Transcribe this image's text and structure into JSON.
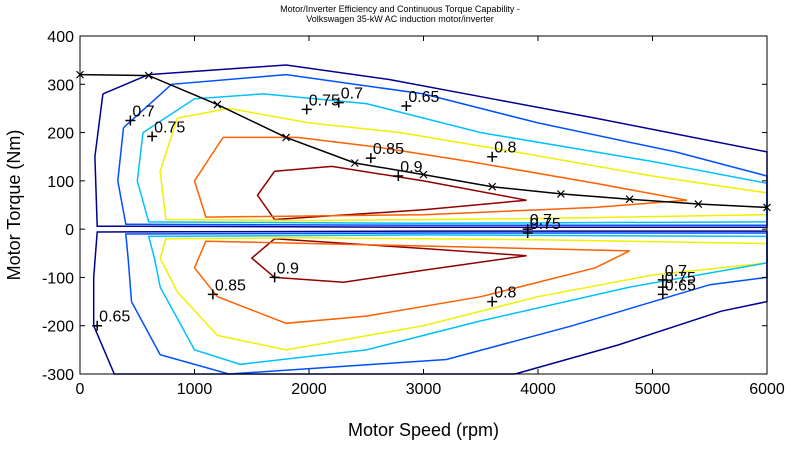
{
  "chart_data": {
    "type": "contour",
    "title": "Motor/Inverter Efficiency and Continuous Torque Capability -",
    "subtitle": "Volkswagen 35-kW  AC induction motor/inverter",
    "xlabel": "Motor Speed (rpm)",
    "ylabel": "Motor Torque (Nm)",
    "xlim": [
      0,
      6000
    ],
    "ylim": [
      -300,
      400
    ],
    "xticks": [
      0,
      1000,
      2000,
      3000,
      4000,
      5000,
      6000
    ],
    "yticks": [
      -300,
      -200,
      -100,
      0,
      100,
      200,
      300,
      400
    ],
    "grid": false,
    "contour_levels": [
      {
        "level": 0.65,
        "color": "#00008f"
      },
      {
        "level": 0.7,
        "color": "#0050ff"
      },
      {
        "level": 0.75,
        "color": "#00c0ff"
      },
      {
        "level": 0.8,
        "color": "#f0f000"
      },
      {
        "level": 0.85,
        "color": "#ff6000"
      },
      {
        "level": 0.9,
        "color": "#8f0000"
      }
    ],
    "contours": [
      {
        "level": 0.9,
        "points": [
          [
            1700,
            120
          ],
          [
            2200,
            130
          ],
          [
            3000,
            100
          ],
          [
            3900,
            60
          ],
          [
            3000,
            40
          ],
          [
            1700,
            20
          ],
          [
            1550,
            70
          ],
          [
            1700,
            120
          ]
        ]
      },
      {
        "level": 0.9,
        "points": [
          [
            1700,
            -100
          ],
          [
            2300,
            -110
          ],
          [
            3000,
            -85
          ],
          [
            3900,
            -55
          ],
          [
            3000,
            -40
          ],
          [
            1700,
            -20
          ],
          [
            1500,
            -60
          ],
          [
            1700,
            -100
          ]
        ]
      },
      {
        "level": 0.85,
        "points": [
          [
            1250,
            190
          ],
          [
            1900,
            190
          ],
          [
            2600,
            170
          ],
          [
            3400,
            140
          ],
          [
            4500,
            95
          ],
          [
            5300,
            60
          ],
          [
            4500,
            45
          ],
          [
            3000,
            30
          ],
          [
            1100,
            25
          ],
          [
            1000,
            100
          ],
          [
            1250,
            190
          ]
        ]
      },
      {
        "level": 0.85,
        "points": [
          [
            1200,
            -140
          ],
          [
            1800,
            -195
          ],
          [
            2500,
            -180
          ],
          [
            3500,
            -140
          ],
          [
            4500,
            -80
          ],
          [
            4800,
            -45
          ],
          [
            3000,
            -35
          ],
          [
            1100,
            -25
          ],
          [
            1000,
            -80
          ],
          [
            1200,
            -140
          ]
        ]
      },
      {
        "level": 0.8,
        "points": [
          [
            850,
            230
          ],
          [
            1300,
            250
          ],
          [
            2000,
            220
          ],
          [
            2800,
            200
          ],
          [
            3800,
            160
          ],
          [
            5000,
            110
          ],
          [
            6000,
            75
          ],
          [
            6000,
            30
          ],
          [
            4000,
            22
          ],
          [
            2000,
            18
          ],
          [
            750,
            20
          ],
          [
            700,
            120
          ],
          [
            850,
            230
          ]
        ]
      },
      {
        "level": 0.8,
        "points": [
          [
            850,
            -130
          ],
          [
            1200,
            -220
          ],
          [
            1800,
            -250
          ],
          [
            3000,
            -200
          ],
          [
            4000,
            -140
          ],
          [
            5000,
            -95
          ],
          [
            6000,
            -70
          ],
          [
            6000,
            -30
          ],
          [
            4000,
            -22
          ],
          [
            2000,
            -18
          ],
          [
            750,
            -20
          ],
          [
            700,
            -60
          ],
          [
            850,
            -130
          ]
        ]
      },
      {
        "level": 0.75,
        "points": [
          [
            550,
            200
          ],
          [
            1000,
            270
          ],
          [
            1600,
            280
          ],
          [
            2500,
            260
          ],
          [
            3500,
            200
          ],
          [
            5000,
            140
          ],
          [
            6000,
            95
          ],
          [
            6000,
            15
          ],
          [
            3000,
            12
          ],
          [
            600,
            15
          ],
          [
            500,
            100
          ],
          [
            550,
            200
          ]
        ]
      },
      {
        "level": 0.75,
        "points": [
          [
            700,
            -120
          ],
          [
            1000,
            -250
          ],
          [
            1400,
            -280
          ],
          [
            2500,
            -250
          ],
          [
            3500,
            -190
          ],
          [
            4800,
            -120
          ],
          [
            6000,
            -70
          ],
          [
            6000,
            -15
          ],
          [
            3000,
            -12
          ],
          [
            600,
            -15
          ],
          [
            650,
            -60
          ],
          [
            700,
            -120
          ]
        ]
      },
      {
        "level": 0.7,
        "points": [
          [
            380,
            210
          ],
          [
            800,
            300
          ],
          [
            1800,
            320
          ],
          [
            3000,
            280
          ],
          [
            4000,
            220
          ],
          [
            5200,
            160
          ],
          [
            6000,
            110
          ],
          [
            6000,
            8
          ],
          [
            3000,
            8
          ],
          [
            400,
            10
          ],
          [
            330,
            100
          ],
          [
            380,
            210
          ]
        ]
      },
      {
        "level": 0.7,
        "points": [
          [
            450,
            -150
          ],
          [
            700,
            -260
          ],
          [
            1300,
            -300
          ],
          [
            3200,
            -270
          ],
          [
            4300,
            -200
          ],
          [
            5500,
            -115
          ],
          [
            6000,
            -100
          ],
          [
            6000,
            -8
          ],
          [
            3000,
            -8
          ],
          [
            400,
            -10
          ],
          [
            420,
            -60
          ],
          [
            450,
            -150
          ]
        ]
      },
      {
        "level": 0.65,
        "points": [
          [
            200,
            280
          ],
          [
            600,
            320
          ],
          [
            1800,
            340
          ],
          [
            2700,
            310
          ],
          [
            3600,
            270
          ],
          [
            4500,
            230
          ],
          [
            6000,
            160
          ],
          [
            6000,
            4
          ],
          [
            3000,
            4
          ],
          [
            150,
            6
          ],
          [
            130,
            150
          ],
          [
            200,
            280
          ]
        ]
      },
      {
        "level": 0.65,
        "points": [
          [
            120,
            -200
          ],
          [
            300,
            -300
          ],
          [
            3800,
            -300
          ],
          [
            4700,
            -240
          ],
          [
            5600,
            -170
          ],
          [
            6000,
            -150
          ],
          [
            6000,
            -4
          ],
          [
            3000,
            -4
          ],
          [
            150,
            -6
          ],
          [
            120,
            -100
          ],
          [
            120,
            -200
          ]
        ]
      }
    ],
    "torque_curve": {
      "name": "continuous torque capability",
      "x": [
        0,
        600,
        1200,
        1800,
        2400,
        3000,
        3600,
        4200,
        4800,
        5400,
        6000
      ],
      "y": [
        320,
        318,
        258,
        190,
        137,
        113,
        88,
        73,
        62,
        52,
        45
      ]
    },
    "labels": [
      {
        "text": "0.7",
        "x": 440,
        "y": 225
      },
      {
        "text": "0.75",
        "x": 630,
        "y": 192
      },
      {
        "text": "0.75",
        "x": 1980,
        "y": 248
      },
      {
        "text": "0.7",
        "x": 2260,
        "y": 262
      },
      {
        "text": "0.65",
        "x": 2850,
        "y": 255
      },
      {
        "text": "0.85",
        "x": 2540,
        "y": 147
      },
      {
        "text": "0.9",
        "x": 2780,
        "y": 110
      },
      {
        "text": "0.8",
        "x": 3600,
        "y": 150
      },
      {
        "text": "0.7",
        "x": 3910,
        "y": 0
      },
      {
        "text": "0.75",
        "x": 3910,
        "y": -8
      },
      {
        "text": "0.9",
        "x": 1700,
        "y": -100
      },
      {
        "text": "0.85",
        "x": 1160,
        "y": -135
      },
      {
        "text": "0.8",
        "x": 3600,
        "y": -150
      },
      {
        "text": "0.65",
        "x": 150,
        "y": -200
      },
      {
        "text": "0.7",
        "x": 5090,
        "y": -105
      },
      {
        "text": "0.75",
        "x": 5090,
        "y": -120
      },
      {
        "text": "0.65",
        "x": 5090,
        "y": -135
      }
    ]
  }
}
